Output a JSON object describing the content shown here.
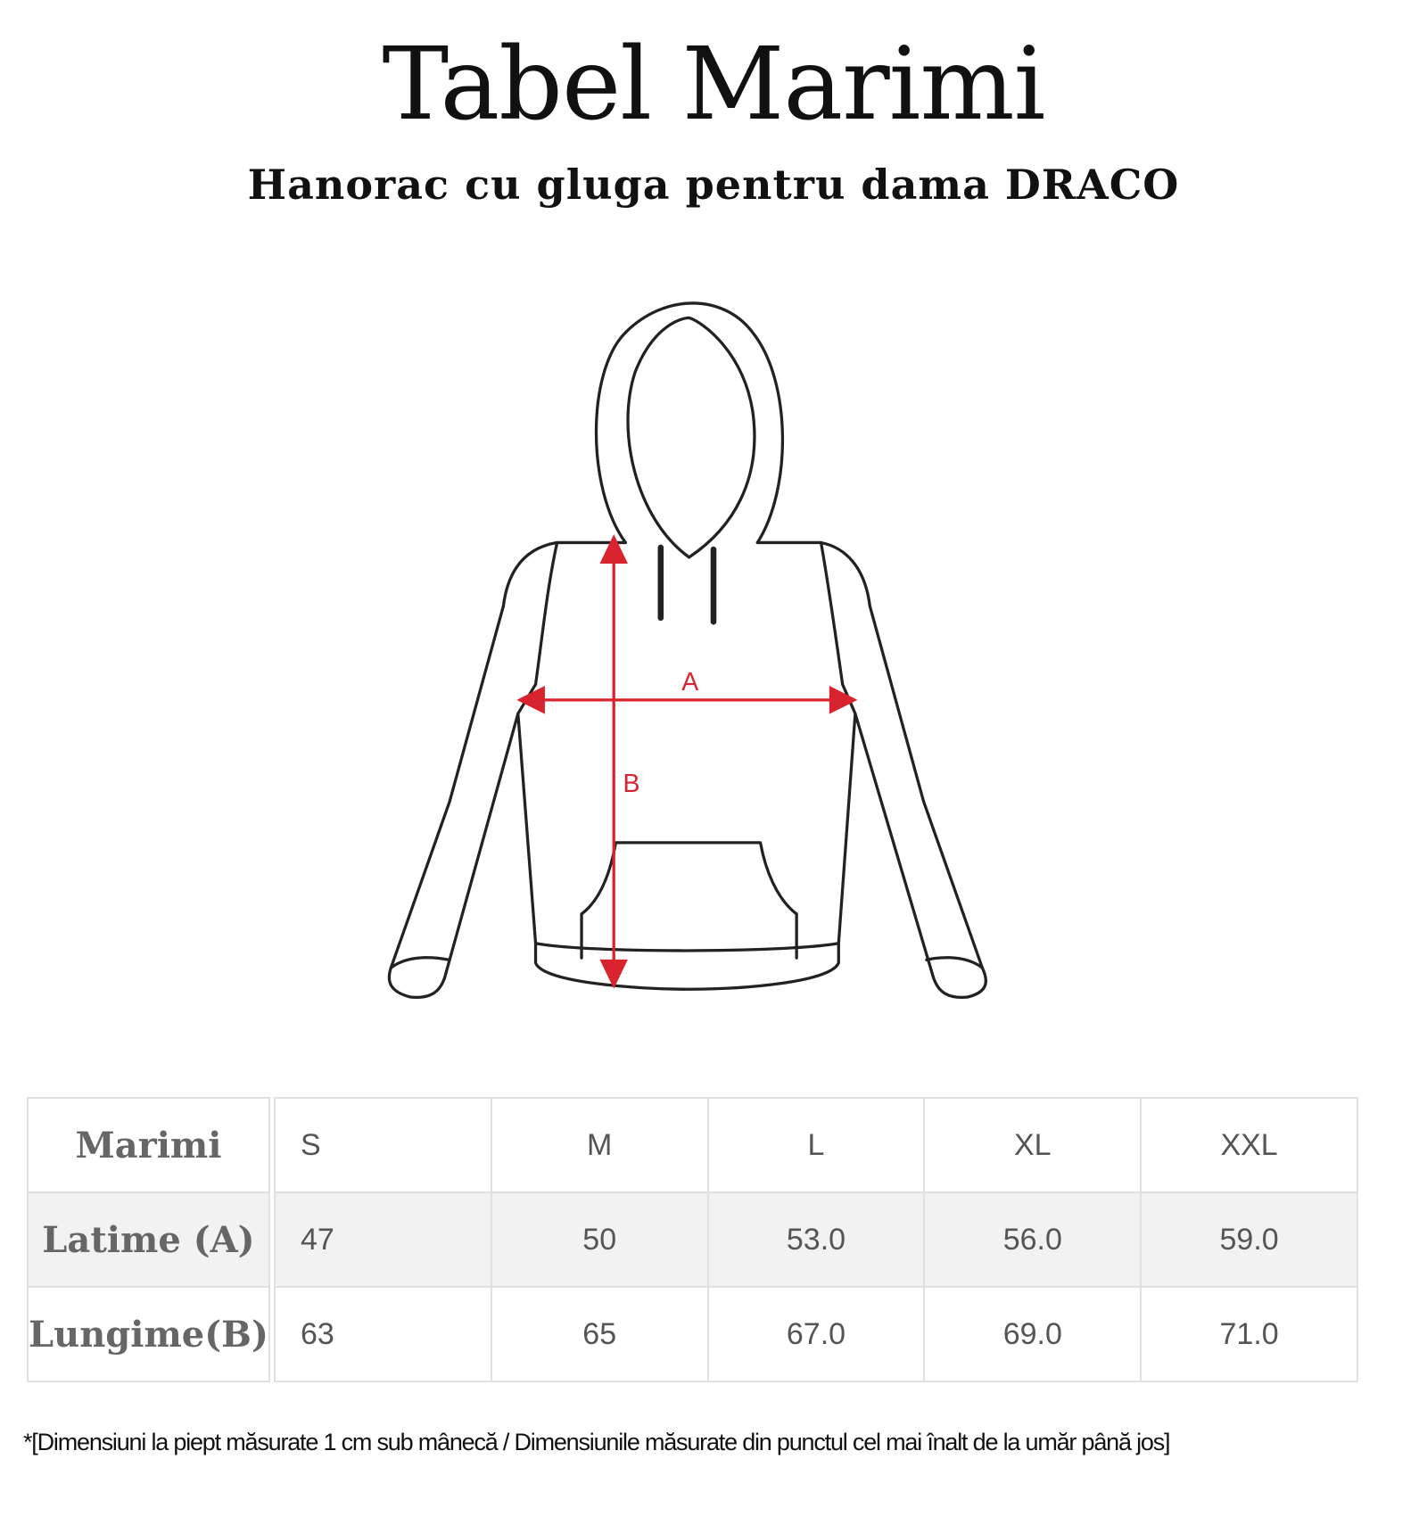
{
  "title": "Tabel Marimi",
  "subtitle": "Hanorac cu gluga pentru dama DRACO",
  "diagram": {
    "label_a": "A",
    "label_b": "B",
    "arrow_color": "#d9232e"
  },
  "table": {
    "row_labels": [
      "Marimi",
      "Latime (A)",
      "Lungime(B)"
    ],
    "sizes": [
      "S",
      "M",
      "L",
      "XL",
      "XXL"
    ],
    "latime": [
      "47",
      "50",
      "53.0",
      "56.0",
      "59.0"
    ],
    "lungime": [
      "63",
      "65",
      "67.0",
      "69.0",
      "71.0"
    ]
  },
  "footnote": "*[Dimensiuni la piept măsurate 1 cm sub mânecă / Dimensiunile măsurate din punctul cel mai înalt de la umăr până jos]"
}
